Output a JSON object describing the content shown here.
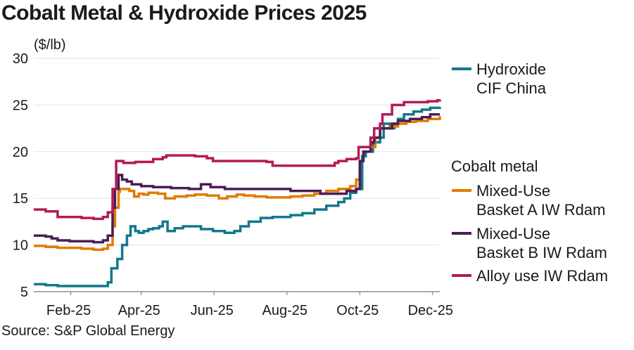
{
  "title": "Cobalt Metal & Hydroxide Prices 2025",
  "source": "Source: S&P Global Energy",
  "chart_data": {
    "type": "line",
    "title": "Cobalt Metal & Hydroxide Prices 2025",
    "ylabel": "($/lb)",
    "xlabel": "",
    "ylim": [
      5,
      30
    ],
    "yticks": [
      5,
      10,
      15,
      20,
      25,
      30
    ],
    "xlim": [
      0,
      340
    ],
    "xticks": [
      {
        "label": "Feb-25",
        "t": 31
      },
      {
        "label": "Apr-25",
        "t": 90
      },
      {
        "label": "Jun-25",
        "t": 151
      },
      {
        "label": "Aug-25",
        "t": 212
      },
      {
        "label": "Oct-25",
        "t": 273
      },
      {
        "label": "Dec-25",
        "t": 334
      }
    ],
    "grid": "horizontal",
    "legend_group_label": "Cobalt metal",
    "series": [
      {
        "name": "Hydroxide CIF China",
        "legend_lines": [
          "Hydroxide",
          "CIF China"
        ],
        "color": "#12788c",
        "points": [
          [
            0,
            5.8
          ],
          [
            10,
            5.7
          ],
          [
            20,
            5.6
          ],
          [
            30,
            5.6
          ],
          [
            40,
            5.6
          ],
          [
            50,
            5.6
          ],
          [
            58,
            5.6
          ],
          [
            62,
            6
          ],
          [
            65,
            7.5
          ],
          [
            70,
            8.5
          ],
          [
            74,
            10
          ],
          [
            78,
            11
          ],
          [
            81,
            12
          ],
          [
            85,
            11.5
          ],
          [
            88,
            11.3
          ],
          [
            92,
            11.5
          ],
          [
            96,
            11.7
          ],
          [
            100,
            11.8
          ],
          [
            105,
            12
          ],
          [
            108,
            12.5
          ],
          [
            112,
            11.5
          ],
          [
            118,
            11.8
          ],
          [
            125,
            12
          ],
          [
            135,
            12
          ],
          [
            140,
            11.7
          ],
          [
            150,
            11.5
          ],
          [
            160,
            11.3
          ],
          [
            168,
            11.5
          ],
          [
            173,
            12
          ],
          [
            180,
            12.5
          ],
          [
            190,
            12.9
          ],
          [
            200,
            13
          ],
          [
            215,
            13.2
          ],
          [
            225,
            13.4
          ],
          [
            235,
            13.8
          ],
          [
            245,
            14.2
          ],
          [
            255,
            14.6
          ],
          [
            260,
            15
          ],
          [
            265,
            15.6
          ],
          [
            270,
            16
          ],
          [
            275,
            19.5
          ],
          [
            278,
            20
          ],
          [
            282,
            20
          ],
          [
            284,
            21
          ],
          [
            290,
            21.5
          ],
          [
            293,
            23
          ],
          [
            298,
            22.5
          ],
          [
            302,
            23
          ],
          [
            305,
            23.5
          ],
          [
            310,
            24
          ],
          [
            318,
            24.3
          ],
          [
            325,
            24.5
          ],
          [
            332,
            24.7
          ],
          [
            340,
            24.8
          ]
        ]
      },
      {
        "name": "Mixed-Use Basket A IW Rdam",
        "legend_lines": [
          "Mixed-Use",
          "Basket A IW Rdam"
        ],
        "color": "#e07b00",
        "points": [
          [
            0,
            9.9
          ],
          [
            10,
            9.8
          ],
          [
            20,
            9.7
          ],
          [
            30,
            9.7
          ],
          [
            40,
            9.6
          ],
          [
            50,
            9.5
          ],
          [
            58,
            9.6
          ],
          [
            62,
            10
          ],
          [
            66,
            12
          ],
          [
            68,
            14
          ],
          [
            71,
            15.7
          ],
          [
            72,
            16
          ],
          [
            80,
            15.8
          ],
          [
            84,
            15.2
          ],
          [
            88,
            15.5
          ],
          [
            92,
            15.4
          ],
          [
            96,
            15.6
          ],
          [
            104,
            15.5
          ],
          [
            110,
            15
          ],
          [
            118,
            15.2
          ],
          [
            128,
            15.3
          ],
          [
            135,
            15.4
          ],
          [
            145,
            15.3
          ],
          [
            155,
            15
          ],
          [
            162,
            15.2
          ],
          [
            170,
            15.4
          ],
          [
            176,
            15.3
          ],
          [
            185,
            15.2
          ],
          [
            195,
            15.1
          ],
          [
            205,
            15.1
          ],
          [
            215,
            15.2
          ],
          [
            225,
            15.3
          ],
          [
            235,
            15.5
          ],
          [
            245,
            15.8
          ],
          [
            255,
            16
          ],
          [
            265,
            16.3
          ],
          [
            270,
            17
          ],
          [
            273,
            19
          ],
          [
            276,
            20
          ],
          [
            282,
            20.5
          ],
          [
            286,
            21.5
          ],
          [
            290,
            22.5
          ],
          [
            295,
            22.5
          ],
          [
            298,
            22.7
          ],
          [
            305,
            23
          ],
          [
            312,
            23.2
          ],
          [
            320,
            23.3
          ],
          [
            330,
            23.5
          ],
          [
            340,
            23.8
          ]
        ]
      },
      {
        "name": "Mixed-Use Basket B IW Rdam",
        "legend_lines": [
          "Mixed-Use",
          "Basket B IW Rdam"
        ],
        "color": "#4b1d55",
        "points": [
          [
            0,
            11
          ],
          [
            10,
            10.9
          ],
          [
            15,
            10.7
          ],
          [
            20,
            10.5
          ],
          [
            30,
            10.4
          ],
          [
            40,
            10.4
          ],
          [
            50,
            10.3
          ],
          [
            58,
            10.5
          ],
          [
            62,
            11
          ],
          [
            66,
            14
          ],
          [
            68,
            16
          ],
          [
            71,
            17.5
          ],
          [
            74,
            17
          ],
          [
            78,
            16.8
          ],
          [
            82,
            16.5
          ],
          [
            90,
            16.3
          ],
          [
            100,
            16.2
          ],
          [
            115,
            16.1
          ],
          [
            130,
            16
          ],
          [
            140,
            16.5
          ],
          [
            148,
            16.2
          ],
          [
            160,
            16
          ],
          [
            175,
            16
          ],
          [
            190,
            16
          ],
          [
            200,
            16
          ],
          [
            215,
            15.8
          ],
          [
            225,
            15.8
          ],
          [
            235,
            15.8
          ],
          [
            240,
            15.5
          ],
          [
            250,
            15.5
          ],
          [
            262,
            15.8
          ],
          [
            270,
            16
          ],
          [
            273,
            19
          ],
          [
            276,
            20
          ],
          [
            282,
            21
          ],
          [
            285,
            21.5
          ],
          [
            290,
            22.5
          ],
          [
            295,
            22.5
          ],
          [
            300,
            23
          ],
          [
            305,
            23.3
          ],
          [
            315,
            23.5
          ],
          [
            325,
            23.7
          ],
          [
            332,
            24
          ],
          [
            340,
            24
          ]
        ]
      },
      {
        "name": "Alloy use IW Rdam",
        "legend_lines": [
          "Alloy use IW Rdam"
        ],
        "color": "#b31b54",
        "points": [
          [
            0,
            13.8
          ],
          [
            10,
            13.6
          ],
          [
            20,
            13
          ],
          [
            30,
            13
          ],
          [
            40,
            12.9
          ],
          [
            50,
            12.8
          ],
          [
            58,
            13
          ],
          [
            62,
            13.5
          ],
          [
            66,
            16
          ],
          [
            69,
            19
          ],
          [
            75,
            18.8
          ],
          [
            85,
            18.9
          ],
          [
            100,
            19.2
          ],
          [
            108,
            19.4
          ],
          [
            111,
            19.6
          ],
          [
            125,
            19.6
          ],
          [
            135,
            19.5
          ],
          [
            145,
            19.3
          ],
          [
            150,
            19
          ],
          [
            165,
            19
          ],
          [
            180,
            19
          ],
          [
            195,
            18.9
          ],
          [
            200,
            18.5
          ],
          [
            215,
            18.5
          ],
          [
            230,
            18.5
          ],
          [
            245,
            18.5
          ],
          [
            252,
            18.8
          ],
          [
            255,
            19
          ],
          [
            262,
            19.2
          ],
          [
            270,
            19.3
          ],
          [
            272,
            20.5
          ],
          [
            278,
            20.5
          ],
          [
            282,
            21.5
          ],
          [
            285,
            22.5
          ],
          [
            290,
            23
          ],
          [
            292,
            24
          ],
          [
            298,
            24
          ],
          [
            300,
            25
          ],
          [
            310,
            25.3
          ],
          [
            320,
            25.3
          ],
          [
            330,
            25.4
          ],
          [
            338,
            25.5
          ],
          [
            340,
            25.6
          ]
        ]
      }
    ]
  }
}
